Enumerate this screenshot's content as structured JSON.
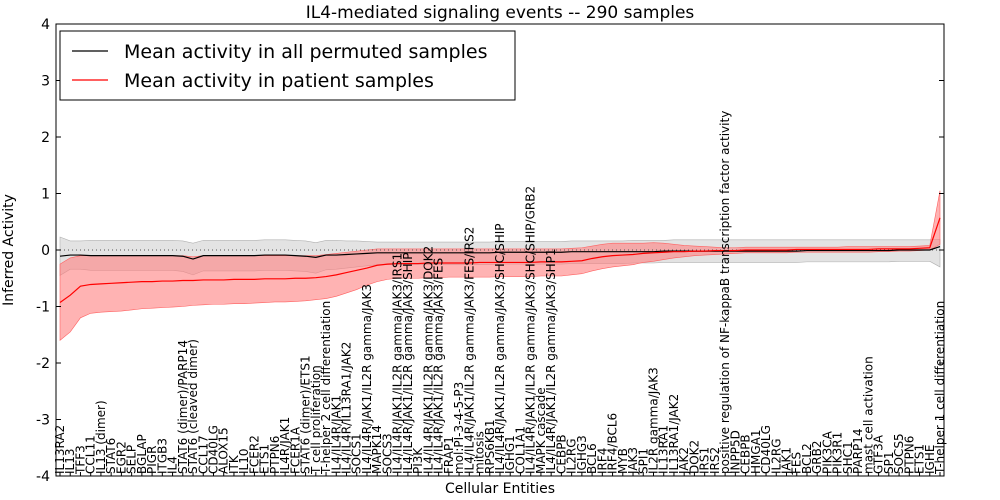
{
  "chart_data": {
    "type": "line",
    "title": "IL4-mediated signaling events -- 290 samples",
    "xlabel": "Cellular Entities",
    "ylabel": "Inferred Activity",
    "ylim": [
      -4,
      4
    ],
    "yticks": [
      -4,
      -3,
      -2,
      -1,
      0,
      1,
      2,
      3,
      4
    ],
    "legend_position": "top-left",
    "colors": {
      "permuted_line": "#000000",
      "permuted_band": "#cccccc",
      "patient_line": "#ff0000",
      "patient_band": "#ff8080",
      "zero_line": "#555555"
    },
    "categories": [
      "IL13RA2",
      "IL13",
      "TFF3",
      "CCL11",
      "IL13 (dimer)",
      "STAT6",
      "EGR2",
      "SELP",
      "BGLAP",
      "PIGR",
      "ITGB3",
      "IL4",
      "STAT6 (dimer)/PARP14",
      "STAT6 (cleaved dimer)",
      "CCL17",
      "CD40LG",
      "ALOX15",
      "ITK",
      "IL10",
      "FCER2",
      "ETS1",
      "PTPN6",
      "IL4R/JAK1",
      "FCER1A",
      "STAT6 (dimer)/ETS1",
      "T cell proliferation",
      "T-helper 2 cell differentiation",
      "IL4/IL4R/JAK1",
      "IL4/IL4R/IL13RA1/JAK2",
      "SOCS1",
      "IL4/IL4R/JAK1/IL2R gamma/JAK3",
      "MAPK14",
      "SOCS3",
      "IL4/IL4R/JAK1/IL2R gamma/JAK3/IRS1",
      "IL4/IL4R/JAK1/IL2R gamma/JAK3/SHIP",
      "PI3K",
      "IL4/IL4R/JAK1/IL2R gamma/JAK3/DOK2",
      "IL4/IL4R/JAK1/IL2R gamma/JAK3/FES",
      "FRAP1",
      "mol:PI-3-4-5-P3",
      "IL4/IL4R/JAK1/IL2R gamma/JAK3/FES/IRS2",
      "mitosis",
      "RPS6KB1",
      "IL4/IL4R/JAK1/IL2R gamma/JAK3/SHC/SHIP",
      "IGHG1",
      "COL1A1",
      "IL4/IL4R/JAK1/IL2R gamma/JAK3/SHC/SHIP/GRB2",
      "MAPK cascade",
      "IL4/IL4R/JAK1/IL2R gamma/JAK3/SHP1",
      "CEBPB",
      "IL2RG",
      "IGHG3",
      "BCL6",
      "IRF4",
      "IRF4/BCL6",
      "MYB",
      "JAK3",
      "SPI1",
      "IL2R gamma/JAK3",
      "IL13RA1",
      "IL13RA1/JAK2",
      "JAK2",
      "DOK2",
      "IRS1",
      "IRS2",
      "positive regulation of NF-kappaB transcription factor activity",
      "INPP5D",
      "CEBPB",
      "HMGA1",
      "CD40LG",
      "IL2RG",
      "JAK1",
      "FES",
      "BCL2",
      "GRB2",
      "PIK3CA",
      "PIK3R1",
      "SHC1",
      "PARP14",
      "mast cell activation",
      "GTF3A",
      "SP1",
      "SOCS5",
      "PTPN6",
      "ETS1",
      "IGHE",
      "T-helper 1 cell differentiation"
    ],
    "series": [
      {
        "name": "Mean activity in all permuted samples",
        "values": [
          -0.11,
          -0.09,
          -0.09,
          -0.1,
          -0.1,
          -0.1,
          -0.1,
          -0.1,
          -0.1,
          -0.1,
          -0.1,
          -0.1,
          -0.11,
          -0.16,
          -0.1,
          -0.1,
          -0.1,
          -0.1,
          -0.1,
          -0.1,
          -0.09,
          -0.09,
          -0.09,
          -0.1,
          -0.11,
          -0.13,
          -0.09,
          -0.09,
          -0.08,
          -0.07,
          -0.06,
          -0.05,
          -0.05,
          -0.05,
          -0.05,
          -0.05,
          -0.05,
          -0.05,
          -0.05,
          -0.05,
          -0.05,
          -0.05,
          -0.05,
          -0.04,
          -0.04,
          -0.04,
          -0.04,
          -0.04,
          -0.04,
          -0.04,
          -0.03,
          -0.03,
          -0.03,
          -0.03,
          -0.03,
          -0.03,
          -0.03,
          -0.03,
          -0.03,
          -0.02,
          -0.02,
          -0.02,
          -0.02,
          -0.02,
          -0.02,
          -0.02,
          -0.02,
          -0.02,
          -0.02,
          -0.02,
          -0.02,
          -0.02,
          -0.02,
          -0.01,
          -0.01,
          -0.01,
          -0.01,
          -0.01,
          -0.01,
          -0.01,
          -0.01,
          -0.01,
          0.0,
          0.0,
          0.0,
          0.0,
          0.06
        ]
      },
      {
        "name": "Mean activity in patient samples",
        "values": [
          -0.93,
          -0.8,
          -0.64,
          -0.61,
          -0.6,
          -0.59,
          -0.58,
          -0.57,
          -0.56,
          -0.56,
          -0.55,
          -0.55,
          -0.54,
          -0.54,
          -0.53,
          -0.53,
          -0.53,
          -0.52,
          -0.52,
          -0.52,
          -0.51,
          -0.51,
          -0.51,
          -0.5,
          -0.5,
          -0.49,
          -0.47,
          -0.44,
          -0.4,
          -0.36,
          -0.32,
          -0.27,
          -0.25,
          -0.24,
          -0.24,
          -0.24,
          -0.23,
          -0.23,
          -0.23,
          -0.23,
          -0.23,
          -0.22,
          -0.22,
          -0.22,
          -0.22,
          -0.22,
          -0.22,
          -0.21,
          -0.21,
          -0.21,
          -0.2,
          -0.19,
          -0.15,
          -0.12,
          -0.1,
          -0.09,
          -0.08,
          -0.06,
          -0.05,
          -0.04,
          -0.03,
          -0.03,
          -0.02,
          -0.02,
          -0.01,
          -0.01,
          -0.01,
          0.0,
          0.0,
          0.0,
          0.0,
          0.0,
          0.01,
          0.01,
          0.01,
          0.01,
          0.01,
          0.01,
          0.01,
          0.01,
          0.02,
          0.02,
          0.02,
          0.02,
          0.03,
          0.04,
          0.57
        ]
      }
    ],
    "bands": {
      "permuted_upper": [
        0.23,
        0.16,
        0.16,
        0.17,
        0.17,
        0.17,
        0.17,
        0.17,
        0.17,
        0.17,
        0.17,
        0.17,
        0.16,
        0.12,
        0.17,
        0.17,
        0.17,
        0.17,
        0.17,
        0.17,
        0.18,
        0.18,
        0.18,
        0.17,
        0.16,
        0.13,
        0.17,
        0.17,
        0.16,
        0.16,
        0.15,
        0.14,
        0.14,
        0.14,
        0.14,
        0.14,
        0.14,
        0.14,
        0.14,
        0.14,
        0.14,
        0.14,
        0.14,
        0.15,
        0.15,
        0.15,
        0.15,
        0.15,
        0.15,
        0.15,
        0.16,
        0.16,
        0.16,
        0.16,
        0.16,
        0.16,
        0.17,
        0.17,
        0.17,
        0.17,
        0.18,
        0.18,
        0.18,
        0.18,
        0.18,
        0.18,
        0.18,
        0.18,
        0.18,
        0.18,
        0.18,
        0.18,
        0.18,
        0.18,
        0.18,
        0.18,
        0.18,
        0.18,
        0.18,
        0.18,
        0.18,
        0.18,
        0.18,
        0.18,
        0.18,
        0.18,
        0.19
      ],
      "permuted_lower": [
        -0.45,
        -0.34,
        -0.34,
        -0.36,
        -0.36,
        -0.36,
        -0.36,
        -0.36,
        -0.36,
        -0.36,
        -0.36,
        -0.36,
        -0.38,
        -0.44,
        -0.37,
        -0.37,
        -0.37,
        -0.37,
        -0.37,
        -0.37,
        -0.36,
        -0.36,
        -0.36,
        -0.37,
        -0.38,
        -0.41,
        -0.35,
        -0.34,
        -0.32,
        -0.3,
        -0.28,
        -0.26,
        -0.26,
        -0.26,
        -0.26,
        -0.26,
        -0.26,
        -0.26,
        -0.26,
        -0.26,
        -0.26,
        -0.26,
        -0.26,
        -0.25,
        -0.25,
        -0.25,
        -0.25,
        -0.25,
        -0.25,
        -0.25,
        -0.24,
        -0.24,
        -0.24,
        -0.24,
        -0.24,
        -0.24,
        -0.23,
        -0.23,
        -0.23,
        -0.22,
        -0.22,
        -0.22,
        -0.22,
        -0.22,
        -0.22,
        -0.22,
        -0.22,
        -0.22,
        -0.22,
        -0.22,
        -0.22,
        -0.22,
        -0.22,
        -0.21,
        -0.21,
        -0.21,
        -0.21,
        -0.21,
        -0.21,
        -0.21,
        -0.21,
        -0.21,
        -0.2,
        -0.2,
        -0.2,
        -0.2,
        -0.3
      ],
      "patient_upper": [
        -0.25,
        -0.14,
        -0.1,
        -0.1,
        -0.1,
        -0.1,
        -0.1,
        -0.1,
        -0.1,
        -0.1,
        -0.1,
        -0.1,
        -0.1,
        -0.12,
        -0.1,
        -0.1,
        -0.1,
        -0.1,
        -0.1,
        -0.1,
        -0.1,
        -0.1,
        -0.1,
        -0.1,
        -0.1,
        -0.1,
        -0.08,
        -0.06,
        -0.04,
        -0.02,
        0.0,
        0.02,
        0.02,
        0.02,
        0.02,
        0.02,
        0.02,
        0.02,
        0.02,
        0.02,
        0.02,
        0.02,
        0.02,
        0.02,
        0.02,
        0.02,
        0.02,
        0.02,
        0.02,
        0.02,
        0.03,
        0.04,
        0.07,
        0.1,
        0.12,
        0.12,
        0.12,
        0.12,
        0.13,
        0.12,
        0.1,
        0.08,
        0.07,
        0.06,
        0.05,
        0.04,
        0.04,
        0.05,
        0.05,
        0.05,
        0.05,
        0.05,
        0.05,
        0.05,
        0.05,
        0.05,
        0.05,
        0.06,
        0.06,
        0.06,
        0.06,
        0.06,
        0.06,
        0.06,
        0.07,
        0.08,
        1.05
      ],
      "patient_lower": [
        -1.6,
        -1.45,
        -1.2,
        -1.12,
        -1.1,
        -1.09,
        -1.08,
        -1.06,
        -1.04,
        -1.03,
        -1.02,
        -1.01,
        -1.0,
        -0.98,
        -0.97,
        -0.96,
        -0.96,
        -0.95,
        -0.95,
        -0.94,
        -0.93,
        -0.92,
        -0.92,
        -0.91,
        -0.9,
        -0.88,
        -0.86,
        -0.82,
        -0.76,
        -0.7,
        -0.62,
        -0.56,
        -0.52,
        -0.5,
        -0.5,
        -0.5,
        -0.49,
        -0.49,
        -0.48,
        -0.48,
        -0.48,
        -0.48,
        -0.48,
        -0.47,
        -0.47,
        -0.47,
        -0.47,
        -0.46,
        -0.46,
        -0.46,
        -0.44,
        -0.42,
        -0.37,
        -0.33,
        -0.3,
        -0.28,
        -0.26,
        -0.22,
        -0.2,
        -0.17,
        -0.14,
        -0.12,
        -0.1,
        -0.09,
        -0.08,
        -0.07,
        -0.06,
        -0.05,
        -0.05,
        -0.05,
        -0.05,
        -0.05,
        -0.04,
        -0.04,
        -0.04,
        -0.04,
        -0.04,
        -0.04,
        -0.04,
        -0.04,
        -0.03,
        -0.03,
        -0.02,
        -0.02,
        -0.01,
        0.0,
        0.1
      ]
    }
  }
}
